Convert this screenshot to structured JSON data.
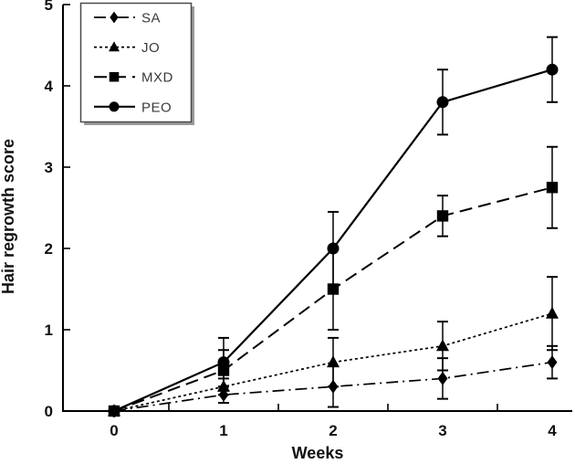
{
  "figure": {
    "background": "#ffffff",
    "ink_color": "#000000"
  },
  "chart_data": {
    "type": "line",
    "title": "",
    "xlabel": "Weeks",
    "ylabel": "Hair regrowth score",
    "x": [
      0,
      1,
      2,
      3,
      4
    ],
    "x_ticks": [
      0,
      1,
      2,
      3,
      4
    ],
    "x_minor_ticks": [
      0.5,
      1.5,
      2.5,
      3.5
    ],
    "y_ticks": [
      0,
      1,
      2,
      3,
      4,
      5
    ],
    "xlim": [
      0,
      4.2
    ],
    "ylim": [
      0,
      5
    ],
    "grid": false,
    "legend_position": "top-left",
    "error_bars": true,
    "series": [
      {
        "name": "SA",
        "marker": "diamond",
        "line": "dashdot",
        "values": [
          0,
          0.2,
          0.3,
          0.4,
          0.6
        ],
        "errors": [
          0,
          0.1,
          0.25,
          0.25,
          0.2
        ]
      },
      {
        "name": "JO",
        "marker": "triangle",
        "line": "dotted",
        "values": [
          0,
          0.3,
          0.6,
          0.8,
          1.2
        ],
        "errors": [
          0,
          0.1,
          0.3,
          0.3,
          0.45
        ]
      },
      {
        "name": "MXD",
        "marker": "square",
        "line": "dashed",
        "values": [
          0,
          0.5,
          1.5,
          2.4,
          2.75
        ],
        "errors": [
          0,
          0.25,
          0.5,
          0.25,
          0.5
        ]
      },
      {
        "name": "PEO",
        "marker": "circle",
        "line": "solid",
        "values": [
          0,
          0.6,
          2.0,
          3.8,
          4.2
        ],
        "errors": [
          0,
          0.3,
          0.45,
          0.4,
          0.4
        ]
      }
    ]
  }
}
